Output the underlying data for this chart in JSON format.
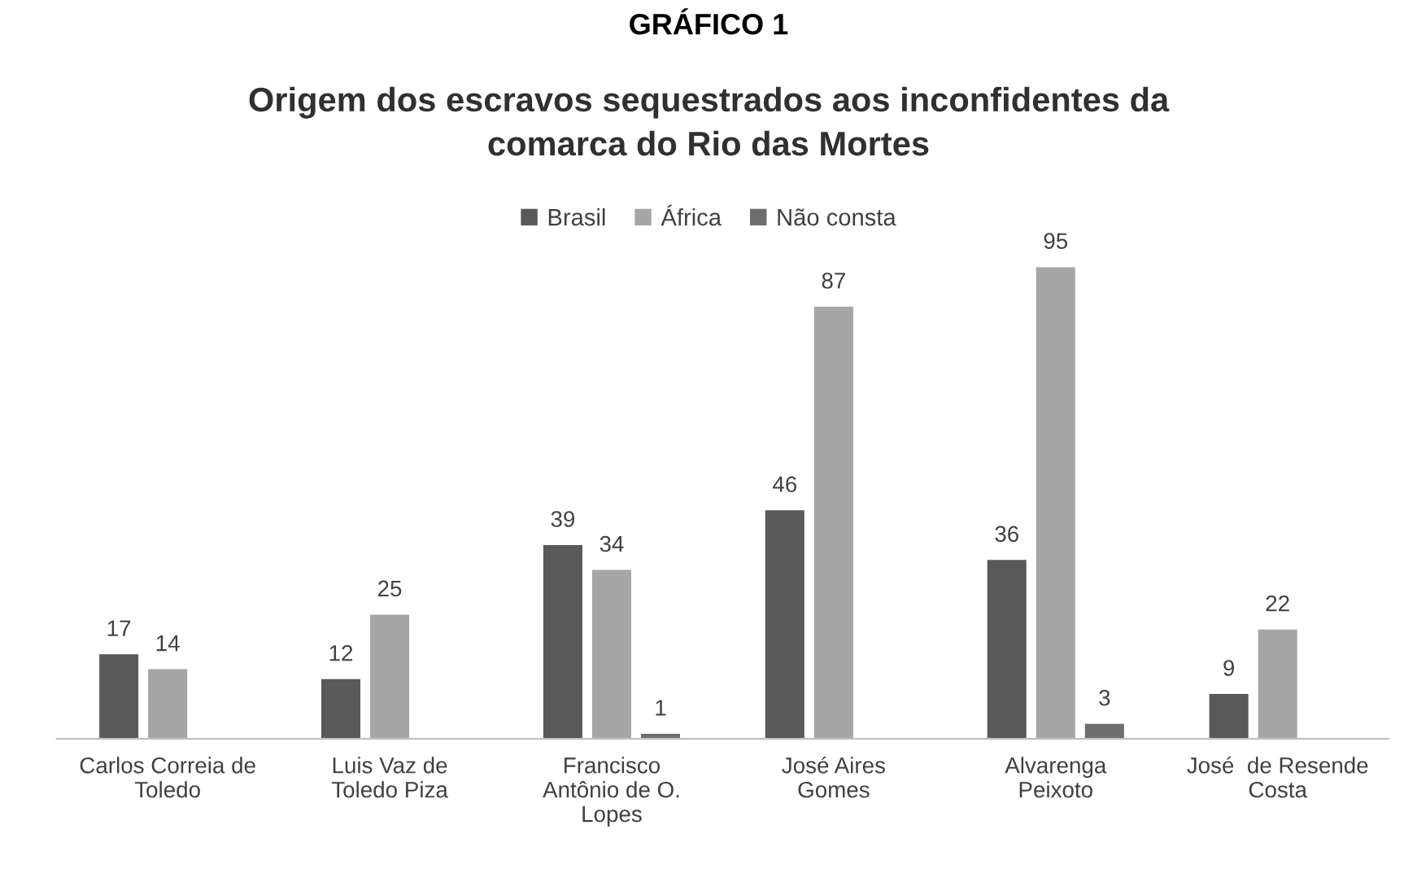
{
  "chart_data": {
    "type": "bar",
    "title": "Origem dos escravos sequestrados aos inconfidentes da\ncomarca do Rio das Mortes",
    "annotations": [
      "GRÁFICO 1"
    ],
    "categories": [
      "Carlos Correia de\nToledo",
      "Luis Vaz de\nToledo Piza",
      "Francisco\nAntônio de O.\nLopes",
      "José Aires\nGomes",
      "Alvarenga\nPeixoto",
      "José  de Resende\nCosta"
    ],
    "series": [
      {
        "name": "Brasil",
        "color": "#595959",
        "values": [
          17,
          12,
          39,
          46,
          36,
          9
        ]
      },
      {
        "name": "África",
        "color": "#a6a6a6",
        "values": [
          14,
          25,
          34,
          87,
          95,
          22
        ]
      },
      {
        "name": "Não consta",
        "color": "#6e6e6e",
        "values": [
          null,
          null,
          1,
          null,
          3,
          null
        ]
      }
    ],
    "data_labels": true,
    "legend": "top",
    "grid": false,
    "tick_labels": "x"
  }
}
